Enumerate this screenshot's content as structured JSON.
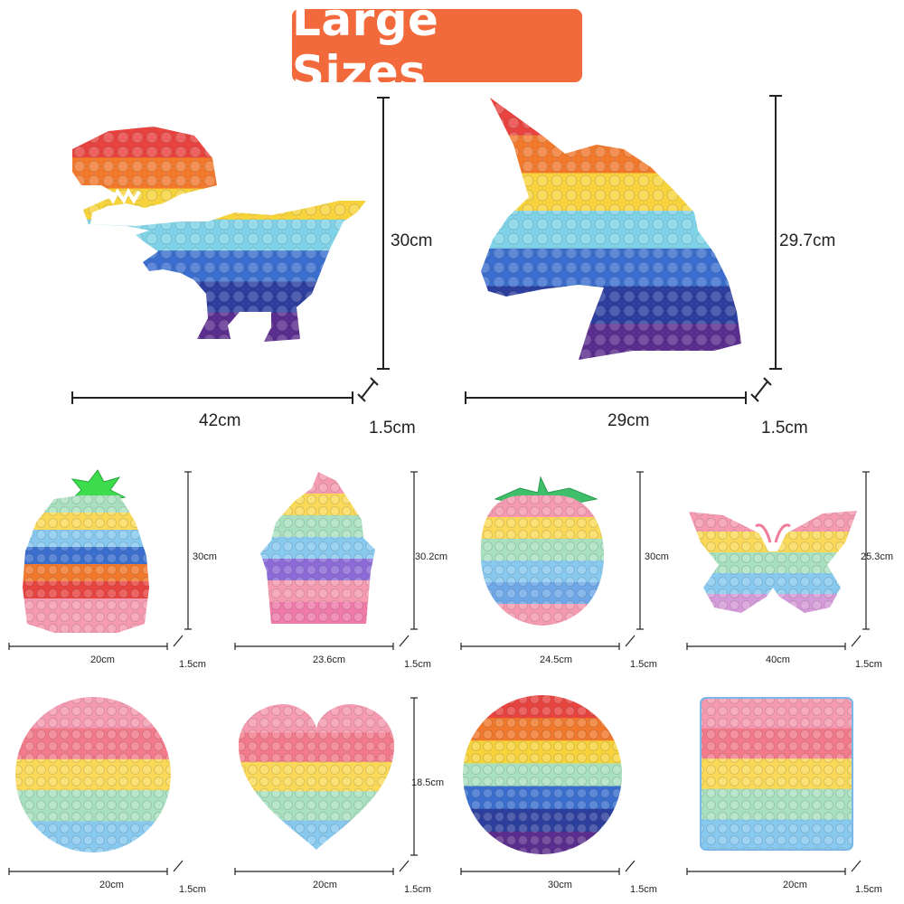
{
  "header": {
    "title": "Large Sizes"
  },
  "rainbow_colors": [
    "#e8433f",
    "#f2792c",
    "#f6d33b",
    "#7fd3e6",
    "#3a6fcf",
    "#2c3e9e",
    "#5b2d8e"
  ],
  "pastel_colors": [
    "#f59ab0",
    "#f9d957",
    "#a8e0c0",
    "#88c9ef",
    "#f59ab0"
  ],
  "products": [
    {
      "shape": "dinosaur",
      "width": "42cm",
      "height": "30cm",
      "thickness": "1.5cm"
    },
    {
      "shape": "unicorn",
      "width": "29cm",
      "height": "29.7cm",
      "thickness": "1.5cm"
    },
    {
      "shape": "pineapple",
      "width": "20cm",
      "height": "30cm",
      "thickness": "1.5cm"
    },
    {
      "shape": "ice-cream",
      "width": "23.6cm",
      "height": "30.2cm",
      "thickness": "1.5cm"
    },
    {
      "shape": "strawberry",
      "width": "24.5cm",
      "height": "30cm",
      "thickness": "1.5cm"
    },
    {
      "shape": "butterfly",
      "width": "40cm",
      "height": "25.3cm",
      "thickness": "1.5cm"
    },
    {
      "shape": "circle-pastel",
      "width": "20cm",
      "thickness": "1.5cm"
    },
    {
      "shape": "heart",
      "width": "20cm",
      "height": "18.5cm",
      "thickness": "1.5cm"
    },
    {
      "shape": "circle-rainbow",
      "width": "30cm",
      "thickness": "1.5cm"
    },
    {
      "shape": "square",
      "width": "20cm",
      "thickness": "1.5cm"
    }
  ]
}
